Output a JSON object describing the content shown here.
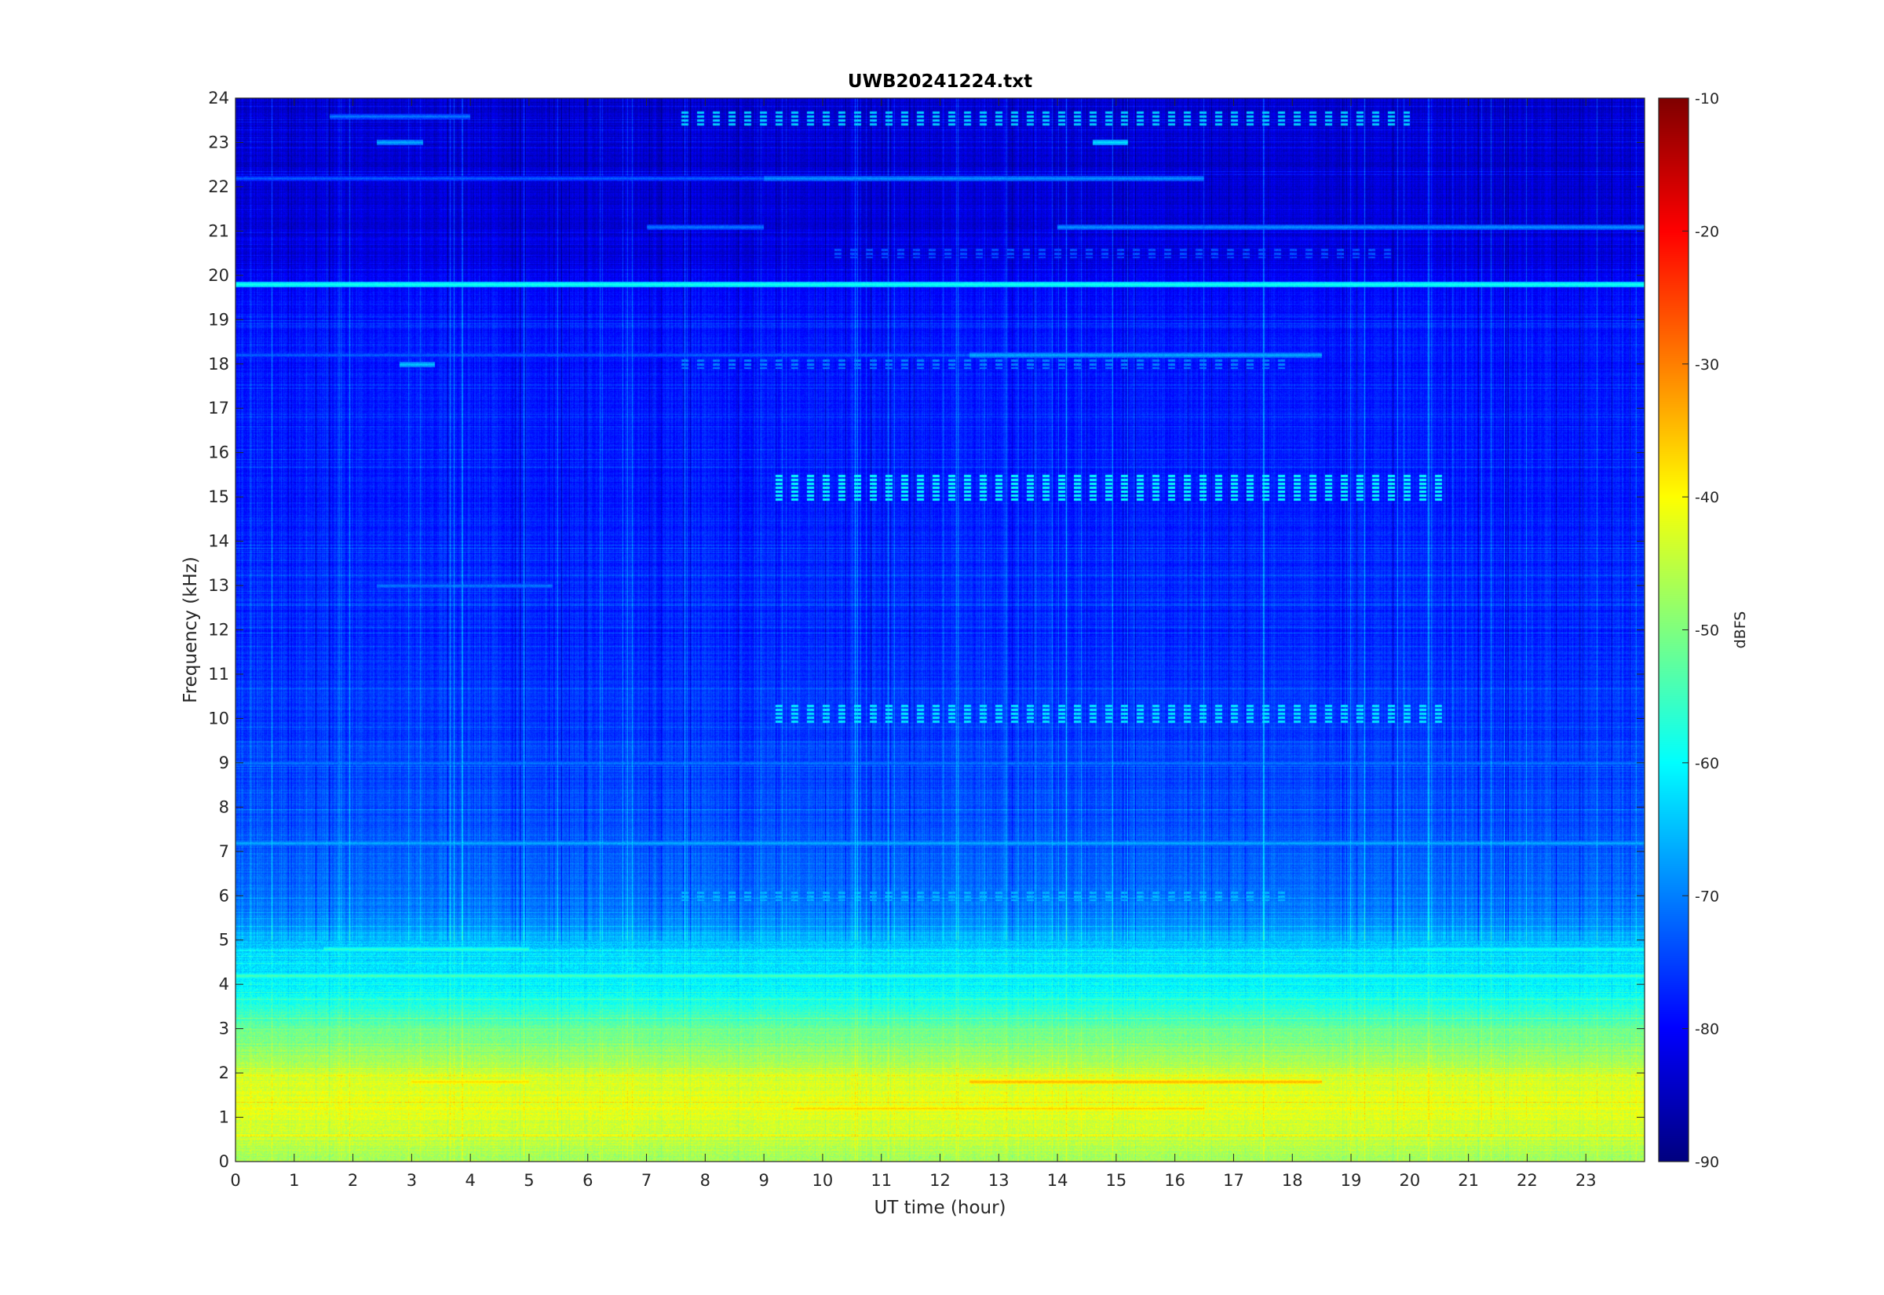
{
  "chart_data": {
    "type": "heatmap",
    "title": "UWB20241224.txt",
    "xlabel": "UT time (hour)",
    "ylabel": "Frequency (kHz)",
    "xlim": [
      0,
      24
    ],
    "ylim": [
      0,
      24
    ],
    "x_ticks": [
      0,
      1,
      2,
      3,
      4,
      5,
      6,
      7,
      8,
      9,
      10,
      11,
      12,
      13,
      14,
      15,
      16,
      17,
      18,
      19,
      20,
      21,
      22,
      23
    ],
    "y_ticks": [
      0,
      1,
      2,
      3,
      4,
      5,
      6,
      7,
      8,
      9,
      10,
      11,
      12,
      13,
      14,
      15,
      16,
      17,
      18,
      19,
      20,
      21,
      22,
      23,
      24
    ],
    "colorbar": {
      "label": "dBFS",
      "range": [
        -90,
        -10
      ],
      "ticks": [
        -90,
        -80,
        -70,
        -60,
        -50,
        -40,
        -30,
        -20,
        -10
      ],
      "colormap": "jet"
    },
    "background_profile": [
      {
        "f": 0.0,
        "db": -48
      },
      {
        "f": 0.6,
        "db": -44
      },
      {
        "f": 1.2,
        "db": -42
      },
      {
        "f": 1.8,
        "db": -43
      },
      {
        "f": 2.4,
        "db": -48
      },
      {
        "f": 3.0,
        "db": -52
      },
      {
        "f": 3.6,
        "db": -58
      },
      {
        "f": 4.2,
        "db": -62
      },
      {
        "f": 4.8,
        "db": -64
      },
      {
        "f": 5.5,
        "db": -70
      },
      {
        "f": 7.0,
        "db": -73
      },
      {
        "f": 9.0,
        "db": -75
      },
      {
        "f": 12.0,
        "db": -77
      },
      {
        "f": 16.0,
        "db": -78
      },
      {
        "f": 19.5,
        "db": -79
      },
      {
        "f": 20.5,
        "db": -83
      },
      {
        "f": 24.0,
        "db": -84
      }
    ],
    "tones": [
      {
        "f": 19.8,
        "t0": 0,
        "t1": 24,
        "db": -58
      },
      {
        "f": 18.2,
        "t0": 12.5,
        "t1": 18.5,
        "db": -66
      },
      {
        "f": 18.2,
        "t0": 0,
        "t1": 12.5,
        "db": -72
      },
      {
        "f": 22.2,
        "t0": 9,
        "t1": 16.5,
        "db": -68
      },
      {
        "f": 22.2,
        "t0": 0,
        "t1": 9,
        "db": -72
      },
      {
        "f": 21.1,
        "t0": 14,
        "t1": 24,
        "db": -68
      },
      {
        "f": 21.1,
        "t0": 7,
        "t1": 9,
        "db": -70
      },
      {
        "f": 23.6,
        "t0": 1.6,
        "t1": 4.0,
        "db": -70
      },
      {
        "f": 23.0,
        "t0": 14.6,
        "t1": 15.2,
        "db": -62
      },
      {
        "f": 23.0,
        "t0": 2.4,
        "t1": 3.2,
        "db": -66
      },
      {
        "f": 18.0,
        "t0": 2.8,
        "t1": 3.4,
        "db": -64
      },
      {
        "f": 13.0,
        "t0": 2.4,
        "t1": 5.4,
        "db": -70
      },
      {
        "f": 9.0,
        "t0": 0,
        "t1": 24,
        "db": -70
      },
      {
        "f": 7.2,
        "t0": 0,
        "t1": 24,
        "db": -66
      },
      {
        "f": 4.8,
        "t0": 1.5,
        "t1": 5.0,
        "db": -56
      },
      {
        "f": 4.8,
        "t0": 20,
        "t1": 24,
        "db": -58
      },
      {
        "f": 4.2,
        "t0": 0,
        "t1": 24,
        "db": -54
      },
      {
        "f": 3.0,
        "t0": 0,
        "t1": 24,
        "db": -50
      },
      {
        "f": 1.8,
        "t0": 12.5,
        "t1": 18.5,
        "db": -34
      },
      {
        "f": 1.8,
        "t0": 3.0,
        "t1": 5.0,
        "db": -37
      },
      {
        "f": 1.2,
        "t0": 9.5,
        "t1": 16.5,
        "db": -36
      },
      {
        "f": 1.2,
        "t0": 0,
        "t1": 24,
        "db": -40
      },
      {
        "f": 0.6,
        "t0": 0,
        "t1": 24,
        "db": -42
      }
    ],
    "pulsed_bands": [
      {
        "f0": 14.9,
        "f1": 15.5,
        "t0": 9.2,
        "t1": 20.6,
        "db": -60
      },
      {
        "f0": 9.9,
        "f1": 10.3,
        "t0": 9.2,
        "t1": 20.6,
        "db": -62
      },
      {
        "f0": 23.4,
        "f1": 23.7,
        "t0": 7.6,
        "t1": 20.0,
        "db": -64
      },
      {
        "f0": 5.9,
        "f1": 6.1,
        "t0": 7.6,
        "t1": 18.0,
        "db": -66
      },
      {
        "f0": 17.9,
        "f1": 18.1,
        "t0": 7.6,
        "t1": 18.0,
        "db": -70
      },
      {
        "f0": 20.4,
        "f1": 20.6,
        "t0": 10.2,
        "t1": 19.8,
        "db": -74
      }
    ],
    "grid": false
  }
}
